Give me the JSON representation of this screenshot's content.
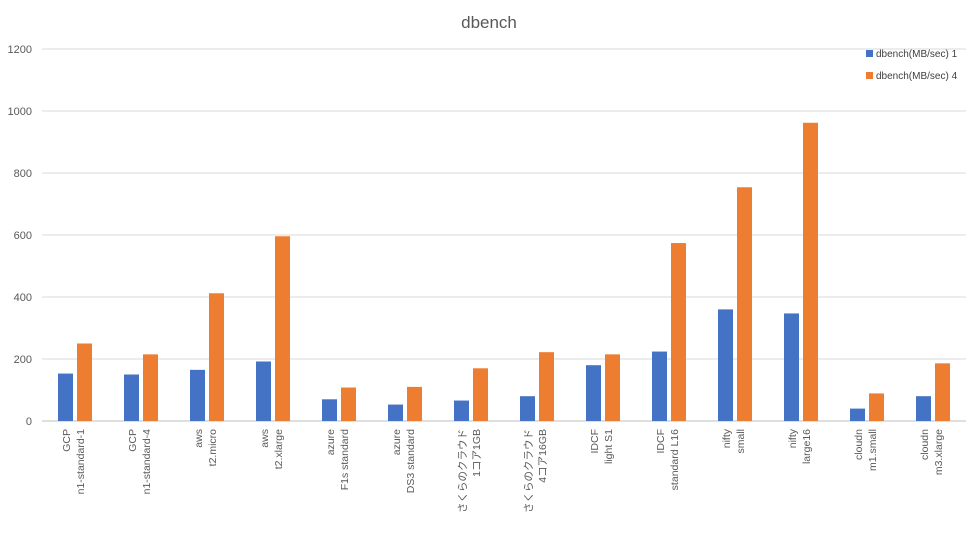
{
  "chart_data": {
    "type": "bar",
    "title": "dbench",
    "xlabel": "",
    "ylabel": "",
    "ylim": [
      0,
      1200
    ],
    "yticks": [
      0,
      200,
      400,
      600,
      800,
      1000,
      1200
    ],
    "grid": true,
    "legend_position": "top-right",
    "categories": [
      [
        "GCP",
        "n1-standard-1"
      ],
      [
        "GCP",
        "n1-standard-4"
      ],
      [
        "aws",
        "t2.micro"
      ],
      [
        "aws",
        "t2.xlarge"
      ],
      [
        "azure",
        "F1s standard"
      ],
      [
        "azure",
        "DS3 standard"
      ],
      [
        "さくらのクラウド",
        "1コア1GB"
      ],
      [
        "さくらのクラウド",
        "4コア16GB"
      ],
      [
        "IDCF",
        "light S1"
      ],
      [
        "IDCF",
        "standard L16"
      ],
      [
        "nifty",
        "small"
      ],
      [
        "nifty",
        "large16"
      ],
      [
        "cloudn",
        "m1.small"
      ],
      [
        "cloudn",
        "m3.xlarge"
      ]
    ],
    "series": [
      {
        "name": "dbench(MB/sec) 1",
        "color": "#4472c4",
        "values": [
          153,
          150,
          165,
          192,
          70,
          53,
          66,
          80,
          180,
          224,
          360,
          347,
          40,
          80
        ]
      },
      {
        "name": "dbench(MB/sec) 4",
        "color": "#ed7d31",
        "values": [
          250,
          215,
          412,
          596,
          108,
          110,
          170,
          222,
          215,
          574,
          754,
          962,
          89,
          186
        ]
      }
    ]
  }
}
